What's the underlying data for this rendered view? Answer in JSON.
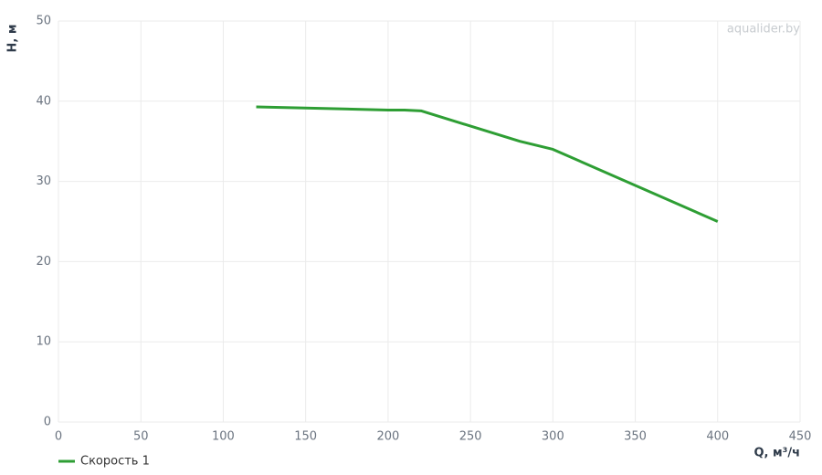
{
  "chart_data": {
    "type": "line",
    "x_label": "Q, м³/ч",
    "y_label": "H, м",
    "watermark": "aqualider.by",
    "x": [
      120,
      200,
      210,
      220,
      280,
      300,
      400
    ],
    "series": [
      {
        "name": "Скорость 1",
        "color": "#2e9e34",
        "values": [
          39.3,
          38.9,
          38.9,
          38.8,
          35,
          34,
          25
        ]
      }
    ],
    "xlim": [
      0,
      450
    ],
    "xticks": [
      0,
      50,
      100,
      150,
      200,
      250,
      300,
      350,
      400,
      450
    ],
    "ylim": [
      0,
      50
    ],
    "yticks": [
      0,
      10,
      20,
      30,
      40,
      50
    ],
    "grid": true,
    "legend": "bottom-left"
  }
}
